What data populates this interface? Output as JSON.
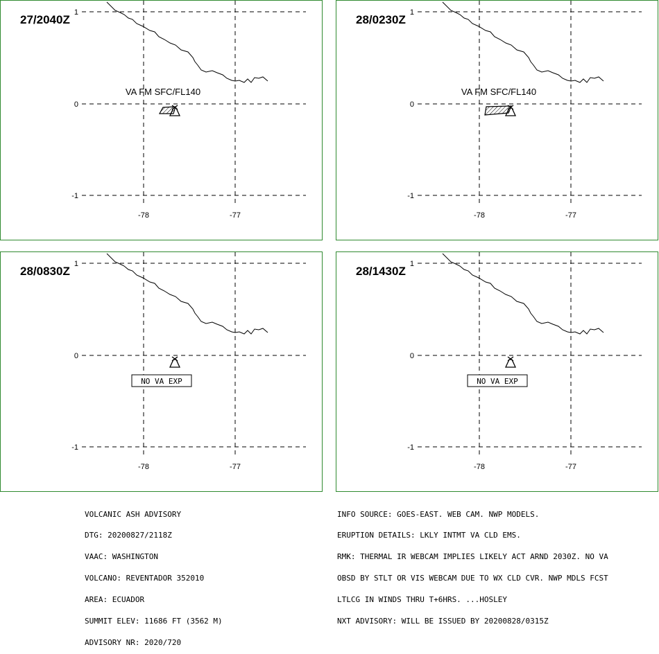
{
  "panels": [
    {
      "time": "27/2040Z",
      "label": "VA FM SFC/FL140",
      "ash": true
    },
    {
      "time": "28/0230Z",
      "label": "VA FM SFC/FL140",
      "ash": true
    },
    {
      "time": "28/0830Z",
      "label": "NO VA EXP",
      "ash": false
    },
    {
      "time": "28/1430Z",
      "label": "NO VA EXP",
      "ash": false
    }
  ],
  "axis": {
    "lat_ticks": [
      "1",
      "0",
      "-1"
    ],
    "lon_ticks": [
      "-78",
      "-77"
    ]
  },
  "colors": {
    "panel_border": "#2f8a2f",
    "lines": "#000000"
  },
  "advisory_left": [
    "VOLCANIC ASH ADVISORY",
    "DTG: 20200827/2118Z",
    "VAAC: WASHINGTON",
    "VOLCANO: REVENTADOR 352010",
    "AREA: ECUADOR",
    "SUMMIT ELEV: 11686 FT (3562 M)",
    "ADVISORY NR: 2020/720"
  ],
  "advisory_right": [
    "INFO SOURCE: GOES-EAST. WEB CAM. NWP MODELS.",
    "ERUPTION DETAILS: LKLY INTMT VA CLD EMS.",
    "RMK: THERMAL IR WEBCAM IMPLIES LIKELY ACT ARND 2030Z. NO VA",
    "OBSD BY STLT OR VIS WEBCAM DUE TO WX CLD CVR. NWP MDLS FCST",
    "LTLCG IN WINDS THRU T+6HRS. ...HOSLEY",
    "NXT ADVISORY: WILL BE ISSUED BY 20200828/0315Z"
  ]
}
